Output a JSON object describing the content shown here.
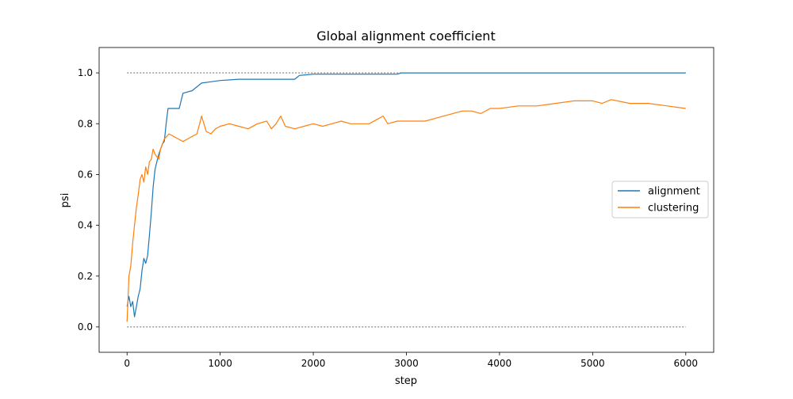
{
  "chart_data": {
    "type": "line",
    "title": "Global alignment coefficient",
    "xlabel": "step",
    "ylabel": "psi",
    "xlim": [
      -300,
      6300
    ],
    "ylim": [
      -0.1,
      1.1
    ],
    "xticks": [
      0,
      1000,
      2000,
      3000,
      4000,
      5000,
      6000
    ],
    "yticks": [
      0.0,
      0.2,
      0.4,
      0.6,
      0.8,
      1.0
    ],
    "xtick_labels": [
      "0",
      "1000",
      "2000",
      "3000",
      "4000",
      "5000",
      "6000"
    ],
    "ytick_labels": [
      "0.0",
      "0.2",
      "0.4",
      "0.6",
      "0.8",
      "1.0"
    ],
    "grid": false,
    "legend_position": "center-right",
    "reference_lines": [
      0.0,
      1.0
    ],
    "series": [
      {
        "name": "alignment",
        "color": "#1f77b4",
        "x": [
          0,
          20,
          40,
          60,
          80,
          100,
          120,
          140,
          160,
          180,
          200,
          220,
          240,
          260,
          280,
          300,
          320,
          340,
          360,
          380,
          400,
          420,
          440,
          500,
          560,
          600,
          700,
          800,
          900,
          1000,
          1200,
          1400,
          1600,
          1800,
          1850,
          2000,
          2500,
          2900,
          2950,
          3500,
          4000,
          5000,
          6000
        ],
        "y": [
          0.08,
          0.12,
          0.08,
          0.1,
          0.04,
          0.08,
          0.12,
          0.15,
          0.22,
          0.27,
          0.25,
          0.28,
          0.36,
          0.45,
          0.55,
          0.62,
          0.65,
          0.68,
          0.7,
          0.72,
          0.73,
          0.8,
          0.86,
          0.86,
          0.86,
          0.92,
          0.93,
          0.96,
          0.965,
          0.97,
          0.975,
          0.975,
          0.975,
          0.975,
          0.99,
          0.995,
          0.995,
          0.995,
          1.0,
          1.0,
          1.0,
          1.0,
          1.0
        ]
      },
      {
        "name": "clustering",
        "color": "#ff7f0e",
        "x": [
          0,
          20,
          40,
          60,
          80,
          100,
          120,
          140,
          160,
          180,
          200,
          220,
          240,
          260,
          280,
          300,
          320,
          340,
          360,
          380,
          400,
          450,
          500,
          550,
          600,
          650,
          700,
          750,
          780,
          800,
          850,
          900,
          950,
          1000,
          1100,
          1200,
          1300,
          1400,
          1500,
          1550,
          1600,
          1650,
          1700,
          1800,
          1900,
          2000,
          2100,
          2200,
          2300,
          2400,
          2500,
          2600,
          2700,
          2750,
          2800,
          2900,
          3000,
          3100,
          3200,
          3300,
          3400,
          3500,
          3600,
          3700,
          3800,
          3900,
          4000,
          4200,
          4400,
          4600,
          4800,
          5000,
          5100,
          5200,
          5400,
          5600,
          5800,
          6000
        ],
        "y": [
          0.02,
          0.2,
          0.24,
          0.33,
          0.4,
          0.47,
          0.52,
          0.58,
          0.6,
          0.57,
          0.63,
          0.6,
          0.65,
          0.66,
          0.7,
          0.68,
          0.67,
          0.66,
          0.7,
          0.72,
          0.74,
          0.76,
          0.75,
          0.74,
          0.73,
          0.74,
          0.75,
          0.76,
          0.8,
          0.83,
          0.77,
          0.76,
          0.78,
          0.79,
          0.8,
          0.79,
          0.78,
          0.8,
          0.81,
          0.78,
          0.8,
          0.83,
          0.79,
          0.78,
          0.79,
          0.8,
          0.79,
          0.8,
          0.81,
          0.8,
          0.8,
          0.8,
          0.82,
          0.83,
          0.8,
          0.81,
          0.81,
          0.81,
          0.81,
          0.82,
          0.83,
          0.84,
          0.85,
          0.85,
          0.84,
          0.86,
          0.86,
          0.87,
          0.87,
          0.88,
          0.89,
          0.89,
          0.88,
          0.895,
          0.88,
          0.88,
          0.87,
          0.86
        ]
      }
    ]
  }
}
